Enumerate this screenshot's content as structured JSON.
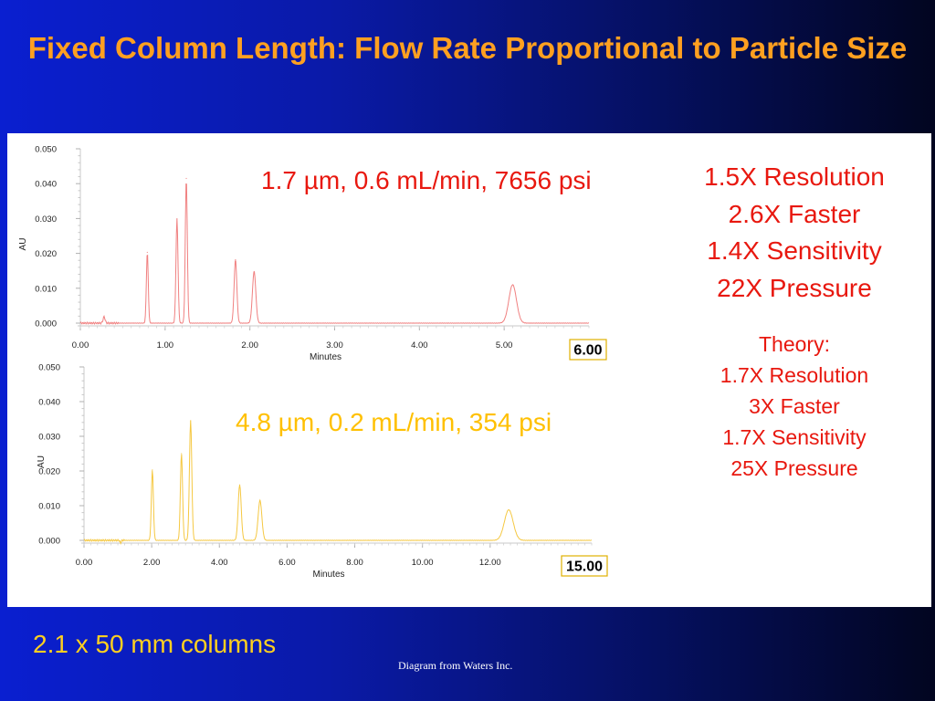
{
  "title": "Fixed Column Length: Flow Rate Proportional to Particle Size",
  "stats": [
    "1.5X Resolution",
    "2.6X Faster",
    "1.4X Sensitivity",
    "22X Pressure"
  ],
  "theory": [
    "Theory:",
    "1.7X Resolution",
    "3X Faster",
    "1.7X Sensitivity",
    "25X Pressure"
  ],
  "footer": "2.1 x 50 mm columns",
  "credit": "Diagram from Waters Inc.",
  "colors": {
    "title": "#ffa020",
    "stats": "#e8180f",
    "footer": "#ffd020",
    "top_trace": "#f08080",
    "bottom_trace": "#f5c842",
    "bottom_label": "#ffc000"
  },
  "chart_data": [
    {
      "type": "line",
      "annotation": "1.7 µm, 0.6 mL/min, 7656 psi",
      "end_box": "6.00",
      "xlabel": "Minutes",
      "ylabel": "AU",
      "xlim": [
        0,
        6.0
      ],
      "ylim": [
        0,
        0.05
      ],
      "x_ticks": [
        "0.00",
        "1.00",
        "2.00",
        "3.00",
        "4.00",
        "5.00"
      ],
      "y_ticks": [
        "0.000",
        "0.010",
        "0.020",
        "0.030",
        "0.040",
        "0.050"
      ],
      "color": "#f08080",
      "peaks": [
        {
          "x": 0.28,
          "y": 0.0018,
          "w": 0.012
        },
        {
          "x": 0.79,
          "y": 0.0203,
          "w": 0.011
        },
        {
          "x": 1.14,
          "y": 0.0299,
          "w": 0.012
        },
        {
          "x": 1.25,
          "y": 0.0415,
          "w": 0.012
        },
        {
          "x": 1.83,
          "y": 0.0182,
          "w": 0.016
        },
        {
          "x": 2.05,
          "y": 0.0148,
          "w": 0.02
        },
        {
          "x": 5.1,
          "y": 0.011,
          "w": 0.045
        }
      ]
    },
    {
      "type": "line",
      "annotation": "4.8 µm, 0.2 mL/min, 354 psi",
      "end_box": "15.00",
      "xlabel": "Minutes",
      "ylabel": "AU",
      "xlim": [
        0,
        15.0
      ],
      "ylim": [
        0,
        0.05
      ],
      "x_ticks": [
        "0.00",
        "2.00",
        "4.00",
        "6.00",
        "8.00",
        "10.00",
        "12.00"
      ],
      "y_ticks": [
        "0.000",
        "0.010",
        "0.020",
        "0.030",
        "0.040",
        "0.050"
      ],
      "color": "#f5c842",
      "peaks": [
        {
          "x": 1.08,
          "y": -0.0008,
          "w": 0.015
        },
        {
          "x": 2.02,
          "y": 0.0203,
          "w": 0.03
        },
        {
          "x": 2.88,
          "y": 0.025,
          "w": 0.032
        },
        {
          "x": 3.15,
          "y": 0.0345,
          "w": 0.035
        },
        {
          "x": 4.6,
          "y": 0.016,
          "w": 0.045
        },
        {
          "x": 5.2,
          "y": 0.0115,
          "w": 0.055
        },
        {
          "x": 12.55,
          "y": 0.0088,
          "w": 0.13
        }
      ]
    }
  ]
}
